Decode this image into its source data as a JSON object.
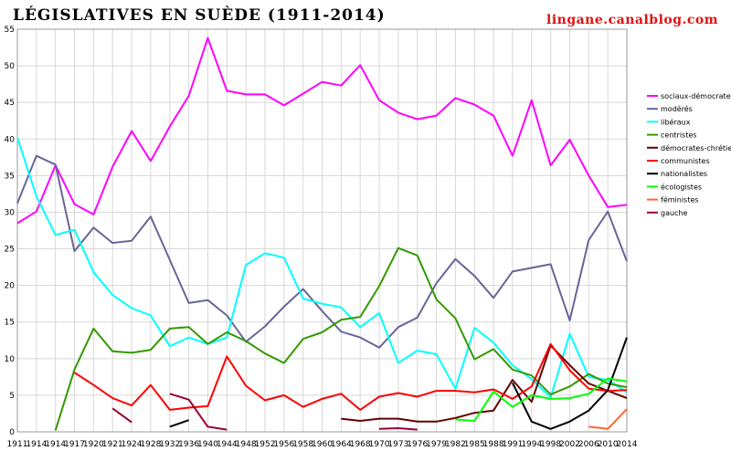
{
  "chart_data": {
    "type": "line",
    "title": "LÉGISLATIVES EN SUÈDE (1911-2014)",
    "credit": "lingane.canalblog.com",
    "xlabel": "",
    "ylabel": "",
    "ylim": [
      0,
      55
    ],
    "yticks": [
      0,
      5,
      10,
      15,
      20,
      25,
      30,
      35,
      40,
      45,
      50,
      55
    ],
    "grid": true,
    "legend_position": "right",
    "categories": [
      "1911",
      "1914",
      "1914",
      "1917",
      "1920",
      "1921",
      "1924",
      "1928",
      "1932",
      "1936",
      "1940",
      "1944",
      "1948",
      "1952",
      "1956",
      "1958",
      "1960",
      "1964",
      "1968",
      "1970",
      "1973",
      "1976",
      "1979",
      "1982",
      "1985",
      "1988",
      "1991",
      "1994",
      "1998",
      "2002",
      "2006",
      "2010",
      "2014"
    ],
    "series": [
      {
        "name": "sociaux-démocrates",
        "color": "#ff00ff",
        "values": [
          28.5,
          30.1,
          36.4,
          31.1,
          29.7,
          36.2,
          41.1,
          37.0,
          41.7,
          45.9,
          53.8,
          46.6,
          46.1,
          46.1,
          44.6,
          46.2,
          47.8,
          47.3,
          50.1,
          45.3,
          43.6,
          42.7,
          43.2,
          45.6,
          44.7,
          43.2,
          37.7,
          45.3,
          36.4,
          39.9,
          35.0,
          30.7,
          31.0
        ]
      },
      {
        "name": "modérés",
        "color": "#666699",
        "values": [
          31.2,
          37.7,
          36.5,
          24.7,
          27.9,
          25.8,
          26.1,
          29.4,
          23.5,
          17.6,
          18.0,
          15.9,
          12.3,
          14.4,
          17.1,
          19.5,
          16.5,
          13.7,
          12.9,
          11.5,
          14.3,
          15.6,
          20.3,
          23.6,
          21.3,
          18.3,
          21.9,
          22.4,
          22.9,
          15.2,
          26.2,
          30.1,
          23.3
        ]
      },
      {
        "name": "libéraux",
        "color": "#00ffff",
        "values": [
          40.2,
          32.2,
          26.9,
          27.6,
          21.8,
          18.7,
          16.9,
          15.9,
          11.7,
          12.9,
          12.0,
          12.9,
          22.8,
          24.4,
          23.8,
          18.2,
          17.5,
          17.0,
          14.3,
          16.2,
          9.4,
          11.1,
          10.6,
          5.9,
          14.2,
          12.2,
          9.1,
          7.2,
          4.7,
          13.4,
          7.5,
          7.1,
          5.4
        ]
      },
      {
        "name": "centristes",
        "color": "#339900",
        "values": [
          null,
          null,
          0.2,
          8.5,
          14.1,
          11.0,
          10.8,
          11.2,
          14.1,
          14.3,
          12.0,
          13.6,
          12.4,
          10.7,
          9.4,
          12.7,
          13.6,
          15.3,
          15.7,
          19.9,
          25.1,
          24.1,
          18.1,
          15.5,
          9.9,
          11.3,
          8.5,
          7.7,
          5.1,
          6.2,
          7.9,
          6.6,
          6.1
        ]
      },
      {
        "name": "démocrates-chrétiens",
        "color": "#660000",
        "values": [
          null,
          null,
          null,
          null,
          null,
          null,
          null,
          null,
          null,
          null,
          null,
          null,
          null,
          null,
          null,
          null,
          null,
          1.8,
          1.5,
          1.8,
          1.8,
          1.4,
          1.4,
          1.9,
          2.6,
          2.9,
          7.1,
          4.1,
          11.8,
          9.1,
          6.6,
          5.6,
          4.6
        ]
      },
      {
        "name": "communistes",
        "color": "#ff0000",
        "values": [
          null,
          null,
          null,
          8.1,
          6.4,
          4.6,
          3.6,
          6.4,
          3.0,
          3.3,
          3.5,
          10.3,
          6.3,
          4.3,
          5.0,
          3.4,
          4.5,
          5.2,
          3.0,
          4.8,
          5.3,
          4.8,
          5.6,
          5.6,
          5.4,
          5.8,
          4.5,
          6.2,
          12.0,
          8.4,
          5.9,
          5.6,
          5.7
        ]
      },
      {
        "name": "nationalistes",
        "color": "#000000",
        "values": [
          null,
          null,
          null,
          null,
          null,
          null,
          null,
          null,
          0.7,
          1.6,
          null,
          null,
          null,
          null,
          null,
          null,
          null,
          null,
          null,
          null,
          null,
          null,
          null,
          null,
          null,
          null,
          6.7,
          1.4,
          0.4,
          1.4,
          2.9,
          5.7,
          12.9
        ]
      },
      {
        "name": "écologistes",
        "color": "#00ff00",
        "values": [
          null,
          null,
          null,
          null,
          null,
          null,
          null,
          null,
          null,
          null,
          null,
          null,
          null,
          null,
          null,
          null,
          null,
          null,
          null,
          null,
          null,
          null,
          null,
          1.7,
          1.5,
          5.5,
          3.4,
          5.0,
          4.5,
          4.6,
          5.2,
          7.3,
          6.9
        ]
      },
      {
        "name": "féministes",
        "color": "#ff6633",
        "values": [
          null,
          null,
          null,
          null,
          null,
          null,
          null,
          null,
          null,
          null,
          null,
          null,
          null,
          null,
          null,
          null,
          null,
          null,
          null,
          null,
          null,
          null,
          null,
          null,
          null,
          null,
          null,
          null,
          null,
          null,
          0.7,
          0.4,
          3.1
        ]
      },
      {
        "name": "gauche",
        "color": "#990033",
        "values": [
          null,
          null,
          null,
          null,
          null,
          3.2,
          1.3,
          null,
          5.2,
          4.4,
          0.7,
          0.3,
          null,
          null,
          null,
          null,
          null,
          null,
          null,
          0.4,
          0.5,
          0.3,
          null,
          null,
          null,
          null,
          null,
          null,
          null,
          null,
          null,
          null,
          null
        ]
      }
    ]
  }
}
